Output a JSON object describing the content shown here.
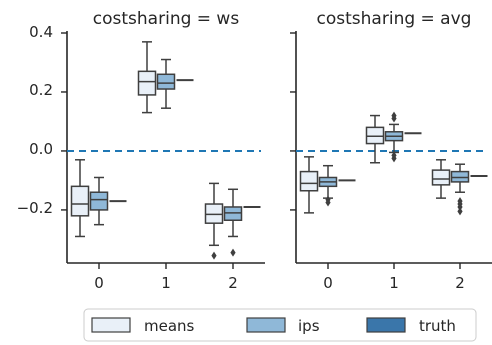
{
  "colors": {
    "means": "#e9f0f8",
    "ips": "#8fb8d8",
    "truth": "#3a76aa",
    "outline": "#3f3f3f",
    "refline": "#1f77b4",
    "text": "#262626"
  },
  "chart_data": {
    "type": "box",
    "ylim": [
      -0.38,
      0.4
    ],
    "yticks": [
      0.4,
      0.2,
      0.0,
      -0.2
    ],
    "ytick_labels": [
      "0.4",
      "0.2",
      "0.0",
      "−0.2"
    ],
    "reference_line": 0.0,
    "categories": [
      "0",
      "1",
      "2"
    ],
    "legend": {
      "position": "bottom",
      "entries": [
        "means",
        "ips",
        "truth"
      ]
    },
    "panels": [
      {
        "title": "costsharing = ws",
        "groups": [
          {
            "category": "0",
            "means": {
              "whislo": -0.29,
              "q1": -0.22,
              "med": -0.18,
              "q3": -0.12,
              "whishi": -0.03,
              "fliers": []
            },
            "ips": {
              "whislo": -0.25,
              "q1": -0.2,
              "med": -0.165,
              "q3": -0.14,
              "whishi": -0.09,
              "fliers": []
            },
            "truth": {
              "whislo": -0.17,
              "q1": -0.17,
              "med": -0.17,
              "q3": -0.17,
              "whishi": -0.17,
              "fliers": []
            }
          },
          {
            "category": "1",
            "means": {
              "whislo": 0.13,
              "q1": 0.19,
              "med": 0.235,
              "q3": 0.27,
              "whishi": 0.37,
              "fliers": []
            },
            "ips": {
              "whislo": 0.145,
              "q1": 0.21,
              "med": 0.23,
              "q3": 0.26,
              "whishi": 0.31,
              "fliers": []
            },
            "truth": {
              "whislo": 0.24,
              "q1": 0.24,
              "med": 0.24,
              "q3": 0.24,
              "whishi": 0.24,
              "fliers": []
            }
          },
          {
            "category": "2",
            "means": {
              "whislo": -0.32,
              "q1": -0.245,
              "med": -0.215,
              "q3": -0.18,
              "whishi": -0.11,
              "fliers": [
                -0.355
              ]
            },
            "ips": {
              "whislo": -0.29,
              "q1": -0.235,
              "med": -0.21,
              "q3": -0.19,
              "whishi": -0.13,
              "fliers": [
                -0.345
              ]
            },
            "truth": {
              "whislo": -0.19,
              "q1": -0.19,
              "med": -0.19,
              "q3": -0.19,
              "whishi": -0.19,
              "fliers": []
            }
          }
        ]
      },
      {
        "title": "costsharing = avg",
        "groups": [
          {
            "category": "0",
            "means": {
              "whislo": -0.21,
              "q1": -0.135,
              "med": -0.11,
              "q3": -0.07,
              "whishi": -0.02,
              "fliers": []
            },
            "ips": {
              "whislo": -0.16,
              "q1": -0.12,
              "med": -0.105,
              "q3": -0.09,
              "whishi": -0.05,
              "fliers": [
                -0.165,
                -0.175
              ]
            },
            "truth": {
              "whislo": -0.1,
              "q1": -0.1,
              "med": -0.1,
              "q3": -0.1,
              "whishi": -0.1,
              "fliers": []
            }
          },
          {
            "category": "1",
            "means": {
              "whislo": -0.04,
              "q1": 0.025,
              "med": 0.05,
              "q3": 0.08,
              "whishi": 0.12,
              "fliers": []
            },
            "ips": {
              "whislo": -0.005,
              "q1": 0.035,
              "med": 0.05,
              "q3": 0.065,
              "whishi": 0.09,
              "fliers": [
                0.11,
                0.12,
                -0.015,
                -0.025
              ]
            },
            "truth": {
              "whislo": 0.06,
              "q1": 0.06,
              "med": 0.06,
              "q3": 0.06,
              "whishi": 0.06,
              "fliers": []
            }
          },
          {
            "category": "2",
            "means": {
              "whislo": -0.16,
              "q1": -0.115,
              "med": -0.095,
              "q3": -0.065,
              "whishi": -0.03,
              "fliers": []
            },
            "ips": {
              "whislo": -0.14,
              "q1": -0.105,
              "med": -0.09,
              "q3": -0.07,
              "whishi": -0.045,
              "fliers": [
                -0.19,
                -0.205,
                -0.17,
                -0.18
              ]
            },
            "truth": {
              "whislo": -0.085,
              "q1": -0.085,
              "med": -0.085,
              "q3": -0.085,
              "whishi": -0.085,
              "fliers": []
            }
          }
        ]
      }
    ]
  }
}
